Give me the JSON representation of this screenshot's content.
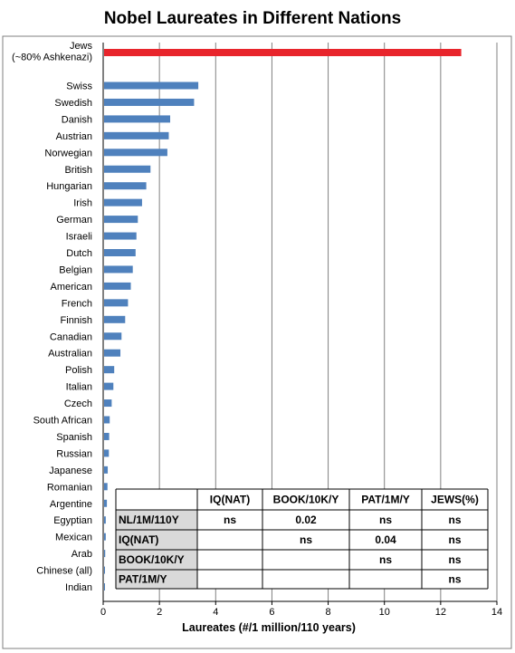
{
  "chart_data": {
    "type": "bar",
    "orientation": "horizontal",
    "title": "Nobel Laureates in Different Nations",
    "xlabel": "Laureates (#/1 million/110 years)",
    "ylabel": "",
    "xlim": [
      0,
      14
    ],
    "xticks": [
      0,
      2,
      4,
      6,
      8,
      10,
      12,
      14
    ],
    "grid": "vertical",
    "categories": [
      [
        "Jews",
        "(~80% Ashkenazi)"
      ],
      "Swiss",
      "Swedish",
      "Danish",
      "Austrian",
      "Norwegian",
      "British",
      "Hungarian",
      "Irish",
      "German",
      "Israeli",
      "Dutch",
      "Belgian",
      "American",
      "French",
      "Finnish",
      "Canadian",
      "Australian",
      "Polish",
      "Italian",
      "Czech",
      "South African",
      "Spanish",
      "Russian",
      "Japanese",
      "Romanian",
      "Argentine",
      "Egyptian",
      "Mexican",
      "Arab",
      "Chinese (all)",
      "Indian"
    ],
    "values": [
      12.7,
      3.35,
      3.2,
      2.35,
      2.3,
      2.25,
      1.65,
      1.5,
      1.35,
      1.2,
      1.15,
      1.12,
      1.02,
      0.95,
      0.85,
      0.75,
      0.62,
      0.58,
      0.36,
      0.33,
      0.27,
      0.2,
      0.18,
      0.17,
      0.13,
      0.12,
      0.1,
      0.06,
      0.06,
      0.04,
      0.03,
      0.02
    ],
    "colors": [
      "#e8252c",
      "#4f81bd"
    ],
    "table": {
      "header": [
        "",
        "IQ(NAT)",
        "BOOK/10K/Y",
        "PAT/1M/Y",
        "JEWS(%)"
      ],
      "rows": [
        [
          "NL/1M/110Y",
          "ns",
          "0.02",
          "ns",
          "ns"
        ],
        [
          "IQ(NAT)",
          "",
          "ns",
          "0.04",
          "ns"
        ],
        [
          "BOOK/10K/Y",
          "",
          "",
          "ns",
          "ns"
        ],
        [
          "PAT/1M/Y",
          "",
          "",
          "",
          "ns"
        ]
      ]
    }
  }
}
